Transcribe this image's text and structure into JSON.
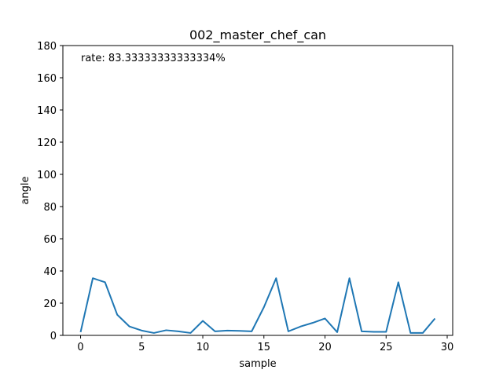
{
  "chart_data": {
    "type": "line",
    "title": "002_master_chef_can",
    "xlabel": "sample",
    "ylabel": "angle",
    "xlim": [
      -1.45,
      30.45
    ],
    "ylim": [
      0,
      180
    ],
    "xticks": [
      0,
      5,
      10,
      15,
      20,
      25,
      30
    ],
    "yticks": [
      0,
      20,
      40,
      60,
      80,
      100,
      120,
      140,
      160,
      180
    ],
    "annotation": "rate: 83.33333333333334%",
    "grid": false,
    "series": [
      {
        "color": "#1f77b4",
        "x": [
          0,
          1,
          2,
          3,
          4,
          5,
          6,
          7,
          8,
          9,
          10,
          11,
          12,
          13,
          14,
          15,
          16,
          17,
          18,
          19,
          20,
          21,
          22,
          23,
          24,
          25,
          26,
          27,
          28,
          29
        ],
        "y": [
          2.0,
          35.5,
          33.0,
          12.8,
          5.5,
          3.0,
          1.5,
          3.2,
          2.5,
          1.5,
          9.0,
          2.5,
          3.0,
          2.8,
          2.5,
          17.5,
          35.5,
          2.5,
          5.5,
          7.8,
          10.5,
          2.0,
          35.5,
          2.5,
          2.2,
          2.2,
          33.0,
          1.5,
          1.5,
          10.5
        ]
      }
    ]
  }
}
